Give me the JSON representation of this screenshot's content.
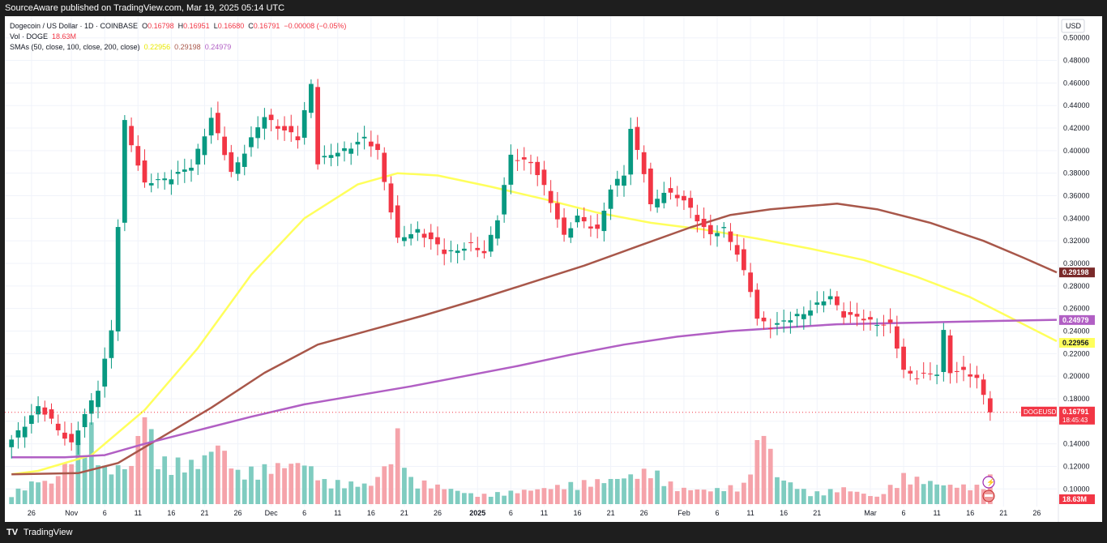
{
  "topbar": {
    "text": "SourceAware published on TradingView.com, Mar 19, 2025 05:14 UTC"
  },
  "footer": {
    "logo_mark": "TV",
    "brand": "TradingView"
  },
  "legend": {
    "symbol": "Dogecoin / US Dollar · 1D · COINBASE",
    "o_label": "O",
    "o": "0.16798",
    "h_label": "H",
    "h": "0.16951",
    "l_label": "L",
    "l": "0.16680",
    "c_label": "C",
    "c": "0.16791",
    "change": "−0.00008 (−0.05%)",
    "vol_label": "Vol · DOGE",
    "vol": "18.63M",
    "sma_label": "SMAs (50, close, 100, close, 200, close)",
    "sma50": "0.22956",
    "sma100": "0.29198",
    "sma200": "0.24979"
  },
  "colors": {
    "up": "#089981",
    "down": "#f23645",
    "vol_up": "#7fccc0",
    "vol_down": "#f5a3aa",
    "sma50": "#ffff5c",
    "sma100": "#a8574a",
    "sma200": "#b15fc4",
    "price_line": "#f23645"
  },
  "icons": [
    "lightning-icon",
    "flag-events-icon"
  ],
  "chart_data": {
    "type": "candlestick",
    "currency": "USD",
    "y_ticks": [
      "0.10000",
      "0.12000",
      "0.14000",
      "0.16000",
      "0.18000",
      "0.20000",
      "0.22000",
      "0.24000",
      "0.26000",
      "0.28000",
      "0.30000",
      "0.32000",
      "0.34000",
      "0.36000",
      "0.38000",
      "0.40000",
      "0.42000",
      "0.44000",
      "0.46000",
      "0.48000",
      "0.50000"
    ],
    "ylim": [
      0.088,
      0.512
    ],
    "x_ticks": [
      "26",
      "Nov",
      "6",
      "11",
      "16",
      "21",
      "26",
      "Dec",
      "6",
      "11",
      "16",
      "21",
      "26",
      "2025",
      "6",
      "11",
      "16",
      "21",
      "26",
      "Feb",
      "6",
      "11",
      "16",
      "21",
      "Mar",
      "6",
      "11",
      "16",
      "21",
      "26"
    ],
    "first_bar": "2024-10-23",
    "last_bar": "2025-03-19",
    "x_range": [
      "2024-10-22",
      "2025-03-29"
    ],
    "price_labels": [
      {
        "name": "sma100",
        "value": 0.29198,
        "text": "0.29198"
      },
      {
        "name": "sma200",
        "value": 0.24979,
        "text": "0.24979"
      },
      {
        "name": "sma50",
        "value": 0.22956,
        "text": "0.22956"
      }
    ],
    "last_price": {
      "symbol": "DOGEUSD",
      "value": 0.16791,
      "text": "0.16791",
      "countdown": "18:45:43"
    },
    "volume_label": "18.63M",
    "anchors": [
      [
        0,
        0.135
      ],
      [
        5,
        0.173
      ],
      [
        10,
        0.14
      ],
      [
        14,
        0.19
      ],
      [
        16,
        0.24
      ],
      [
        18,
        0.425
      ],
      [
        21,
        0.37
      ],
      [
        24,
        0.375
      ],
      [
        28,
        0.385
      ],
      [
        31,
        0.43
      ],
      [
        34,
        0.38
      ],
      [
        39,
        0.43
      ],
      [
        44,
        0.41
      ],
      [
        46,
        0.46
      ],
      [
        47,
        0.39
      ],
      [
        54,
        0.41
      ],
      [
        56,
        0.4
      ],
      [
        59,
        0.32
      ],
      [
        62,
        0.33
      ],
      [
        66,
        0.31
      ],
      [
        70,
        0.315
      ],
      [
        72,
        0.31
      ],
      [
        74,
        0.34
      ],
      [
        76,
        0.395
      ],
      [
        79,
        0.39
      ],
      [
        82,
        0.355
      ],
      [
        84,
        0.325
      ],
      [
        86,
        0.34
      ],
      [
        89,
        0.33
      ],
      [
        91,
        0.365
      ],
      [
        93,
        0.38
      ],
      [
        94,
        0.42
      ],
      [
        96,
        0.38
      ],
      [
        97,
        0.35
      ],
      [
        99,
        0.365
      ],
      [
        102,
        0.355
      ],
      [
        104,
        0.34
      ],
      [
        106,
        0.325
      ],
      [
        108,
        0.33
      ],
      [
        110,
        0.31
      ],
      [
        112,
        0.275
      ],
      [
        113,
        0.25
      ],
      [
        115,
        0.245
      ],
      [
        118,
        0.25
      ],
      [
        121,
        0.26
      ],
      [
        124,
        0.27
      ],
      [
        126,
        0.255
      ],
      [
        129,
        0.25
      ],
      [
        133,
        0.245
      ],
      [
        135,
        0.205
      ],
      [
        137,
        0.2
      ],
      [
        140,
        0.202
      ],
      [
        141,
        0.24
      ],
      [
        142,
        0.205
      ],
      [
        144,
        0.203
      ],
      [
        146,
        0.198
      ],
      [
        148,
        0.17
      ],
      [
        149,
        0.15
      ],
      [
        151,
        0.16
      ],
      [
        153,
        0.17
      ],
      [
        155,
        0.172
      ],
      [
        157,
        0.168
      ]
    ],
    "volume_anchors": [
      [
        0,
        0.6
      ],
      [
        4,
        1.4
      ],
      [
        6,
        1.2
      ],
      [
        12,
        4.2
      ],
      [
        14,
        2.0
      ],
      [
        18,
        2.2
      ],
      [
        20,
        5.5
      ],
      [
        22,
        2.5
      ],
      [
        28,
        2.3
      ],
      [
        31,
        3.5
      ],
      [
        34,
        1.8
      ],
      [
        40,
        2.2
      ],
      [
        44,
        2.4
      ],
      [
        47,
        1.3
      ],
      [
        54,
        1.1
      ],
      [
        57,
        2.6
      ],
      [
        58,
        4.0
      ],
      [
        60,
        1.4
      ],
      [
        70,
        0.5
      ],
      [
        80,
        0.9
      ],
      [
        85,
        1.2
      ],
      [
        90,
        1.4
      ],
      [
        94,
        1.7
      ],
      [
        96,
        2.0
      ],
      [
        100,
        0.9
      ],
      [
        105,
        0.8
      ],
      [
        110,
        1.1
      ],
      [
        113,
        4.5
      ],
      [
        115,
        1.6
      ],
      [
        120,
        0.6
      ],
      [
        125,
        0.9
      ],
      [
        130,
        0.4
      ],
      [
        134,
        1.6
      ],
      [
        140,
        1.1
      ],
      [
        145,
        1.0
      ],
      [
        148,
        1.8
      ],
      [
        150,
        1.6
      ],
      [
        152,
        1.0
      ],
      [
        157,
        0.5
      ]
    ],
    "volume_max_label": "18.63M",
    "series": [
      {
        "name": "SMA 50",
        "values": [
          [
            0,
            0.113
          ],
          [
            4,
            0.116
          ],
          [
            12,
            0.13
          ],
          [
            20,
            0.17
          ],
          [
            28,
            0.225
          ],
          [
            36,
            0.29
          ],
          [
            44,
            0.34
          ],
          [
            52,
            0.37
          ],
          [
            58,
            0.38
          ],
          [
            64,
            0.378
          ],
          [
            72,
            0.368
          ],
          [
            80,
            0.357
          ],
          [
            88,
            0.345
          ],
          [
            96,
            0.336
          ],
          [
            104,
            0.33
          ],
          [
            112,
            0.322
          ],
          [
            120,
            0.313
          ],
          [
            128,
            0.303
          ],
          [
            136,
            0.288
          ],
          [
            144,
            0.27
          ],
          [
            150,
            0.252
          ],
          [
            157,
            0.231
          ]
        ]
      },
      {
        "name": "SMA 100",
        "values": [
          [
            0,
            0.113
          ],
          [
            10,
            0.114
          ],
          [
            16,
            0.123
          ],
          [
            22,
            0.144
          ],
          [
            30,
            0.172
          ],
          [
            38,
            0.203
          ],
          [
            46,
            0.228
          ],
          [
            54,
            0.241
          ],
          [
            62,
            0.254
          ],
          [
            70,
            0.268
          ],
          [
            78,
            0.283
          ],
          [
            86,
            0.298
          ],
          [
            94,
            0.315
          ],
          [
            102,
            0.332
          ],
          [
            108,
            0.343
          ],
          [
            114,
            0.348
          ],
          [
            120,
            0.351
          ],
          [
            124,
            0.353
          ],
          [
            130,
            0.348
          ],
          [
            138,
            0.336
          ],
          [
            146,
            0.32
          ],
          [
            152,
            0.305
          ],
          [
            157,
            0.292
          ]
        ]
      },
      {
        "name": "SMA 200",
        "values": [
          [
            0,
            0.128
          ],
          [
            8,
            0.128
          ],
          [
            14,
            0.13
          ],
          [
            20,
            0.14
          ],
          [
            28,
            0.152
          ],
          [
            36,
            0.164
          ],
          [
            44,
            0.175
          ],
          [
            52,
            0.183
          ],
          [
            60,
            0.191
          ],
          [
            68,
            0.2
          ],
          [
            76,
            0.209
          ],
          [
            84,
            0.219
          ],
          [
            92,
            0.228
          ],
          [
            100,
            0.235
          ],
          [
            108,
            0.24
          ],
          [
            116,
            0.243
          ],
          [
            124,
            0.246
          ],
          [
            132,
            0.247
          ],
          [
            140,
            0.248
          ],
          [
            148,
            0.249
          ],
          [
            157,
            0.25
          ]
        ]
      }
    ]
  }
}
